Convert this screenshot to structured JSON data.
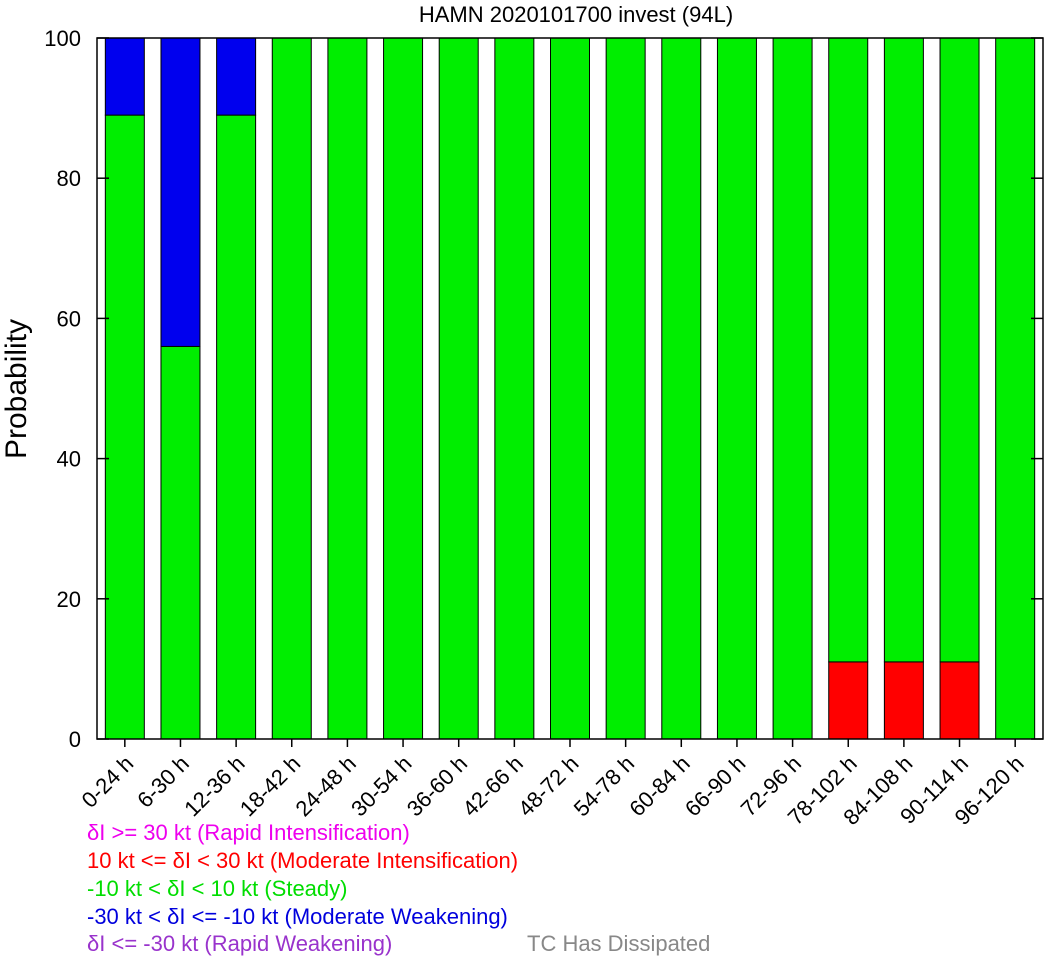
{
  "chart_data": {
    "type": "bar",
    "stacked": true,
    "title": "HAMN 2020101700 invest (94L)",
    "xlabel": "",
    "ylabel": "Probability",
    "ylim": [
      0,
      100
    ],
    "yticks": [
      0,
      20,
      40,
      60,
      80,
      100
    ],
    "grid": false,
    "categories": [
      "0-24 h",
      "6-30 h",
      "12-36 h",
      "18-42 h",
      "24-48 h",
      "30-54 h",
      "36-60 h",
      "42-66 h",
      "48-72 h",
      "54-78 h",
      "60-84 h",
      "66-90 h",
      "72-96 h",
      "78-102 h",
      "84-108 h",
      "90-114 h",
      "96-120 h"
    ],
    "series": [
      {
        "color": "#ff0000",
        "values": [
          0,
          0,
          0,
          0,
          0,
          0,
          0,
          0,
          0,
          0,
          0,
          0,
          0,
          11,
          11,
          11,
          0
        ]
      },
      {
        "color": "#00ee00",
        "values": [
          89,
          56,
          89,
          100,
          100,
          100,
          100,
          100,
          100,
          100,
          100,
          100,
          100,
          89,
          89,
          89,
          100
        ]
      },
      {
        "color": "#0000ee",
        "values": [
          11,
          44,
          11,
          0,
          0,
          0,
          0,
          0,
          0,
          0,
          0,
          0,
          0,
          0,
          0,
          0,
          0
        ]
      }
    ]
  },
  "legend": [
    {
      "text": "δI >= 30 kt (Rapid Intensification)",
      "color": "#ee00ee"
    },
    {
      "text": "10 kt <= δI < 30 kt (Moderate Intensification)",
      "color": "#ff0000"
    },
    {
      "text": "-10 kt < δI < 10 kt (Steady)",
      "color": "#00dd00"
    },
    {
      "text": "-30 kt < δI <= -10 kt (Moderate Weakening)",
      "color": "#0000dd"
    },
    {
      "text": "δI <= -30 kt (Rapid Weakening)",
      "color": "#9933cc"
    }
  ],
  "note": {
    "text": "TC Has Dissipated",
    "color": "#888888"
  }
}
